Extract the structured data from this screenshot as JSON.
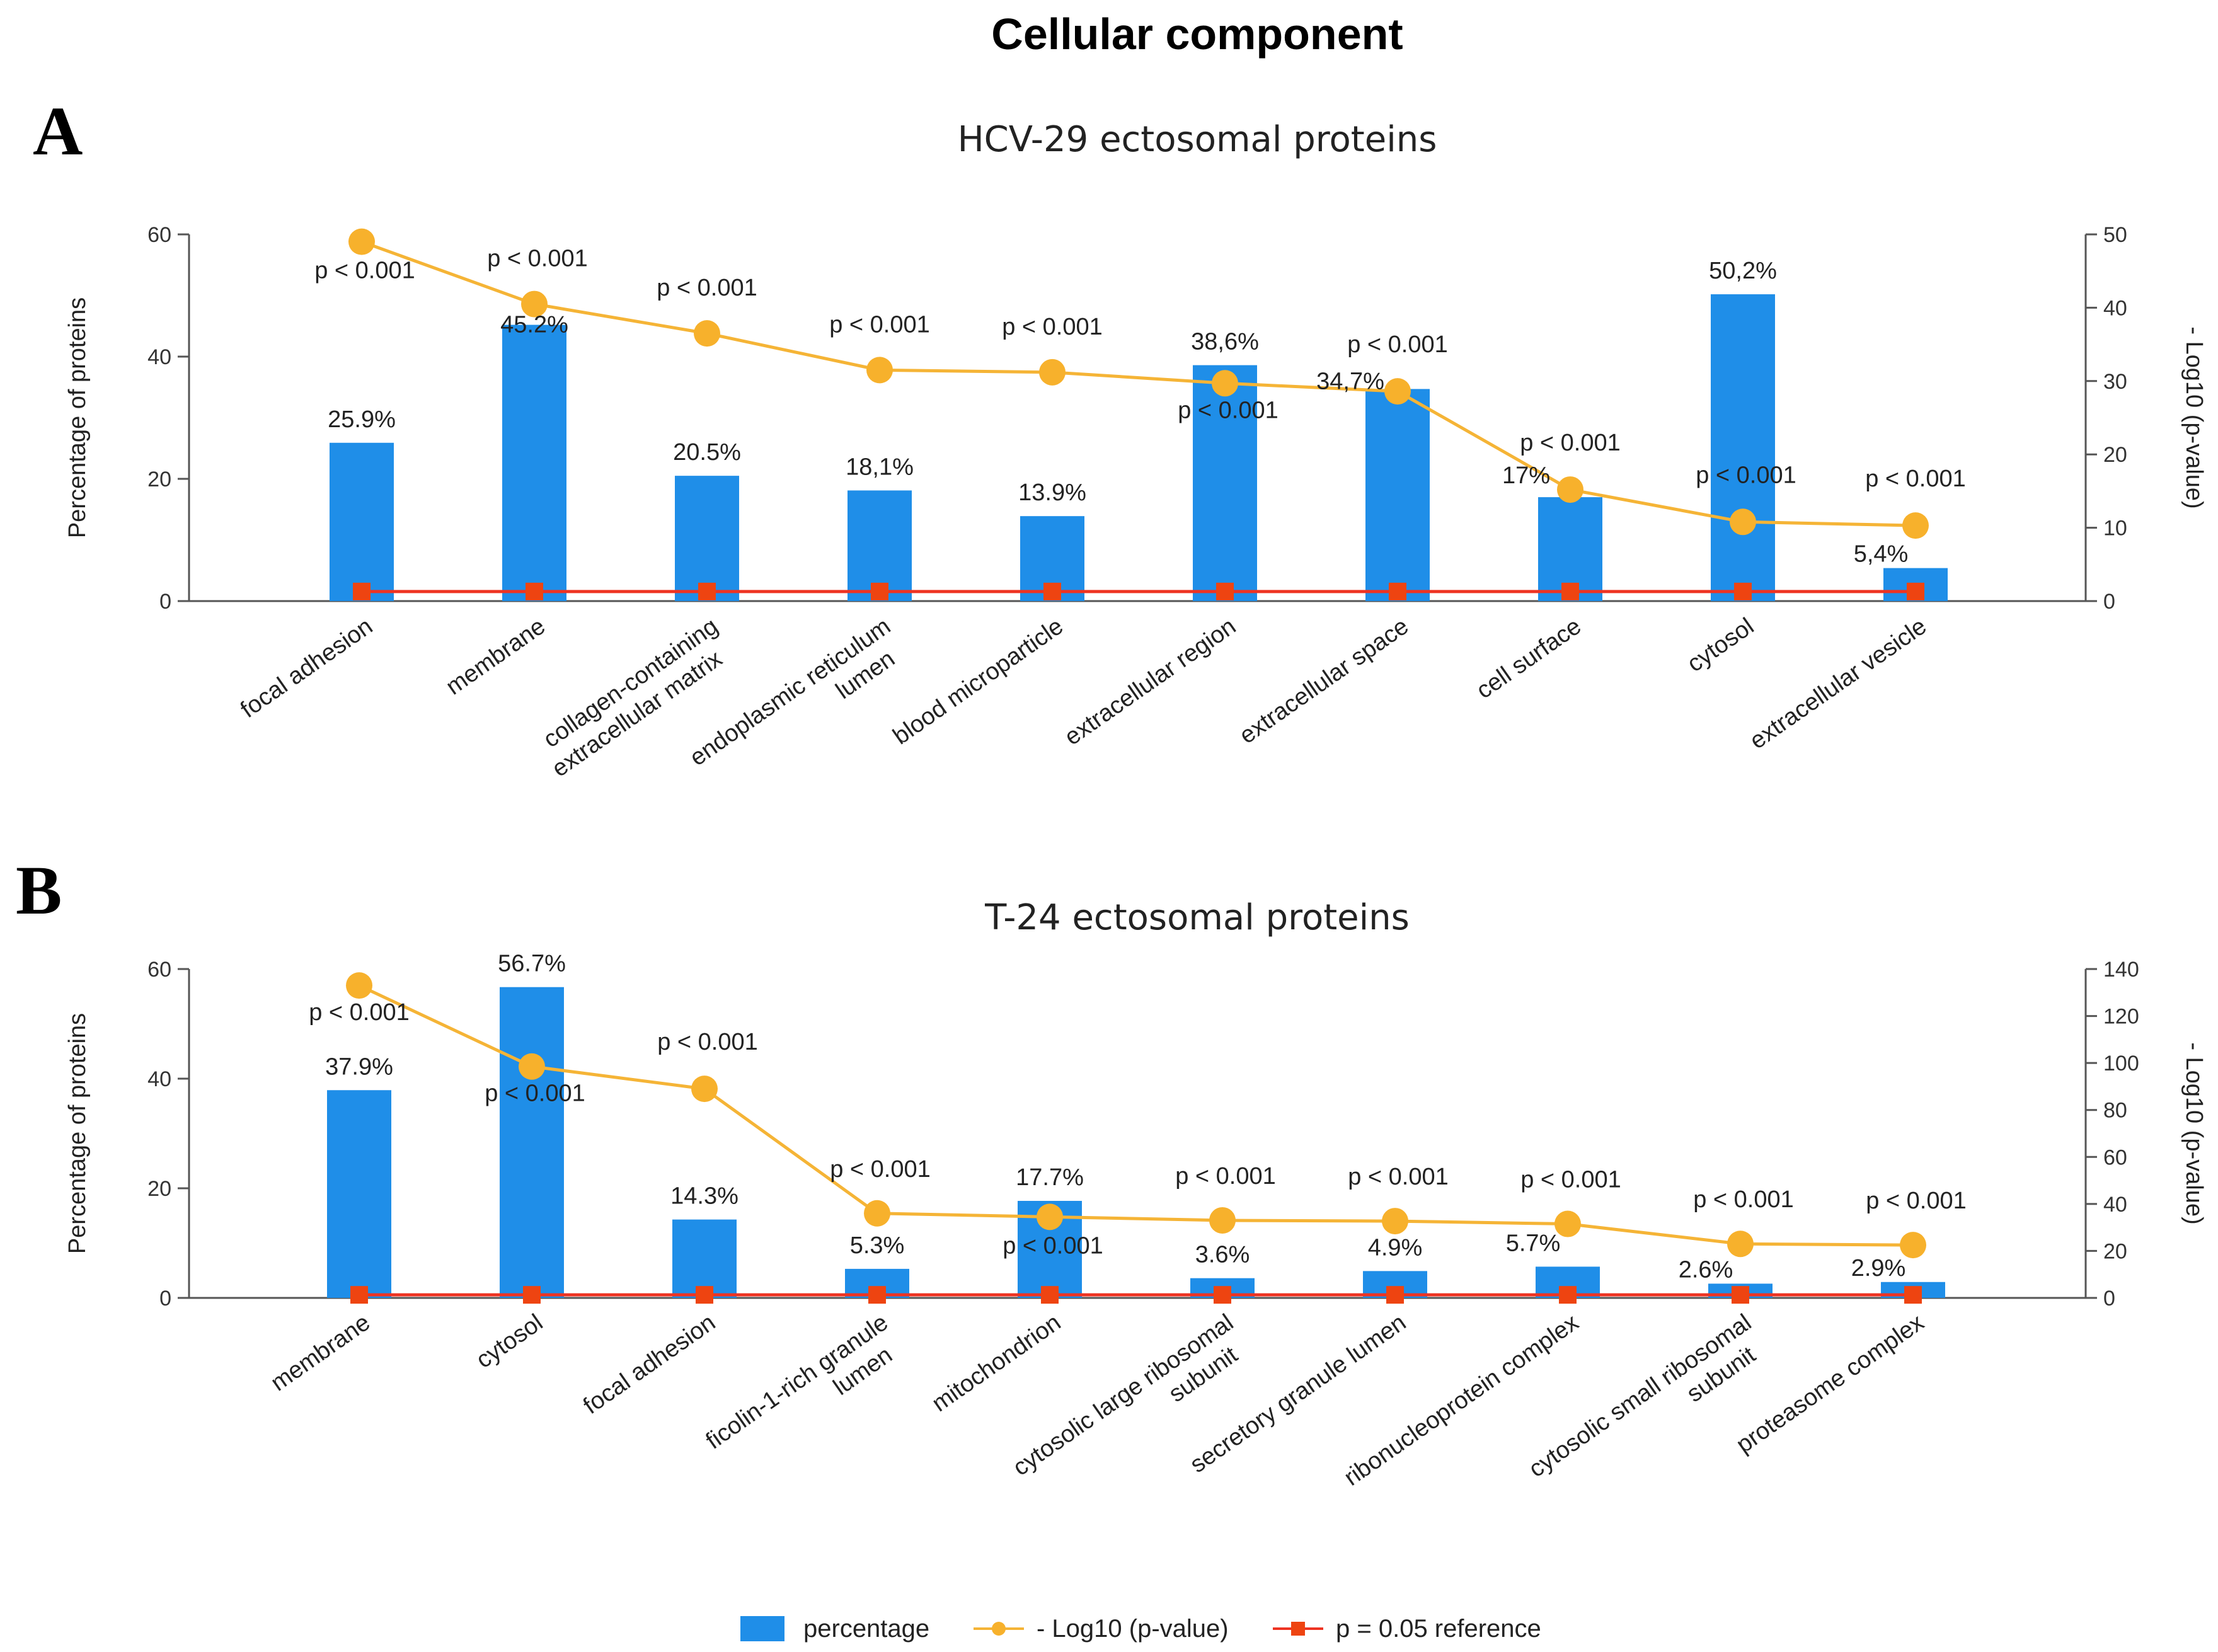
{
  "title": "Cellular component",
  "colors": {
    "bar": "#1f8ee8",
    "line": "#f5b436",
    "marker": "#f7b12c",
    "reference": "#ee3322",
    "reference_marker": "#ee4411"
  },
  "legend": [
    {
      "label": "percentage",
      "icon": "bar-swatch"
    },
    {
      "label": "- Log10 (p-value)",
      "icon": "line-circle-marker"
    },
    {
      "label": "p = 0.05 reference",
      "icon": "line-square-marker"
    }
  ],
  "chart_data": [
    {
      "panel": "A",
      "type": "bar",
      "title": "HCV-29 ectosomal proteins",
      "ylabel": "Percentage of proteins",
      "y2label": "- Log10 (p-value)",
      "ylim": [
        0,
        60
      ],
      "yticks": [
        0,
        20,
        40,
        60
      ],
      "y2lim": [
        0,
        50
      ],
      "y2ticks": [
        0,
        10,
        20,
        30,
        40,
        50
      ],
      "categories": [
        [
          "focal adhesion"
        ],
        [
          "membrane"
        ],
        [
          "collagen-containing",
          "extracellular matrix"
        ],
        [
          "endoplasmic reticulum",
          "lumen"
        ],
        [
          "blood microparticle"
        ],
        [
          "extracellular region"
        ],
        [
          "extracellular space"
        ],
        [
          "cell surface"
        ],
        [
          "cytosol"
        ],
        [
          "extracellular vesicle"
        ]
      ],
      "series": [
        {
          "name": "percentage",
          "axis": "left",
          "values": [
            25.9,
            45.2,
            20.5,
            18.1,
            13.9,
            38.6,
            34.7,
            17,
            50.2,
            5.4
          ],
          "labels": [
            "25.9%",
            "45.2%",
            "20.5%",
            "18,1%",
            "13.9%",
            "38,6%",
            "34,7%",
            "17%",
            "50,2%",
            "5,4%"
          ]
        },
        {
          "name": "- Log10 (p-value)",
          "axis": "right",
          "values": [
            49,
            40.5,
            36.5,
            31.5,
            31.2,
            29.7,
            28.6,
            15.2,
            10.8,
            10.3
          ],
          "labels": [
            "p < 0.001",
            "p < 0.001",
            "p < 0.001",
            "p < 0.001",
            "p < 0.001",
            "p < 0.001",
            "p < 0.001",
            "p < 0.001",
            "p < 0.001",
            "p < 0.001"
          ]
        },
        {
          "name": "p = 0.05 reference",
          "axis": "right",
          "values": [
            1.3,
            1.3,
            1.3,
            1.3,
            1.3,
            1.3,
            1.3,
            1.3,
            1.3,
            1.3
          ]
        }
      ]
    },
    {
      "panel": "B",
      "type": "bar",
      "title": "T-24 ectosomal proteins",
      "ylabel": "Percentage of proteins",
      "y2label": "- Log10 (p-value)",
      "ylim": [
        0,
        60
      ],
      "yticks": [
        0,
        20,
        40,
        60
      ],
      "y2lim": [
        0,
        140
      ],
      "y2ticks": [
        0,
        20,
        40,
        60,
        80,
        100,
        120,
        140
      ],
      "categories": [
        [
          "membrane"
        ],
        [
          "cytosol"
        ],
        [
          "focal adhesion"
        ],
        [
          "ficolin-1-rich granule",
          "lumen"
        ],
        [
          "mitochondrion"
        ],
        [
          "cytosolic large ribosomal",
          "subunit"
        ],
        [
          "secretory granule lumen"
        ],
        [
          "ribonucleoprotein complex"
        ],
        [
          "cytosolic small ribosomal",
          "subunit"
        ],
        [
          "proteasome complex"
        ]
      ],
      "series": [
        {
          "name": "percentage",
          "axis": "left",
          "values": [
            37.9,
            56.7,
            14.3,
            5.3,
            17.7,
            3.6,
            4.9,
            5.7,
            2.6,
            2.9
          ],
          "labels": [
            "37.9%",
            "56.7%",
            "14.3%",
            "5.3%",
            "17.7%",
            "3.6%",
            "4.9%",
            "5.7%",
            "2.6%",
            "2.9%"
          ]
        },
        {
          "name": "- Log10 (p-value)",
          "axis": "right",
          "values": [
            133,
            98.5,
            89,
            36,
            34.5,
            33,
            32.7,
            31.5,
            23,
            22.5
          ],
          "labels": [
            "p < 0.001",
            "p < 0.001",
            "p < 0.001",
            "p < 0.001",
            "p < 0.001",
            "p < 0.001",
            "p < 0.001",
            "p < 0.001",
            "p < 0.001",
            "p < 0.001"
          ]
        },
        {
          "name": "p = 0.05 reference",
          "axis": "right",
          "values": [
            1.3,
            1.3,
            1.3,
            1.3,
            1.3,
            1.3,
            1.3,
            1.3,
            1.3,
            1.3
          ]
        }
      ]
    }
  ]
}
